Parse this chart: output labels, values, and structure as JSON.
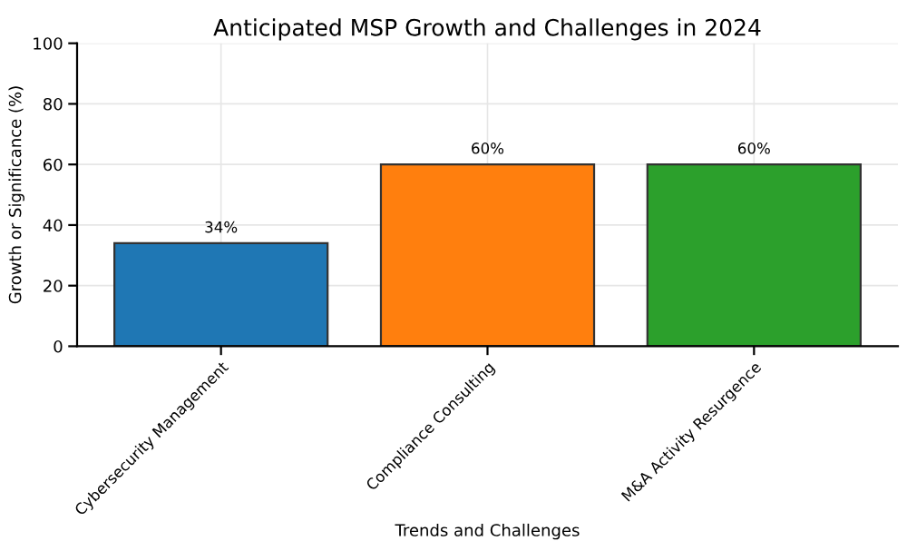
{
  "chart_data": {
    "type": "bar",
    "title": "Anticipated MSP Growth and Challenges in 2024",
    "xlabel": "Trends and Challenges",
    "ylabel": "Growth or Significance (%)",
    "categories": [
      "Cybersecurity Management",
      "Compliance Consulting",
      "M&A Activity Resurgence"
    ],
    "values": [
      34,
      60,
      60
    ],
    "colors": [
      "#1f77b4",
      "#ff7f0e",
      "#2ca02c"
    ],
    "value_labels": [
      "34%",
      "60%",
      "60%"
    ],
    "ylim": [
      0,
      100
    ],
    "yticks": [
      0,
      20,
      40,
      60,
      80,
      100
    ],
    "grid": true
  }
}
